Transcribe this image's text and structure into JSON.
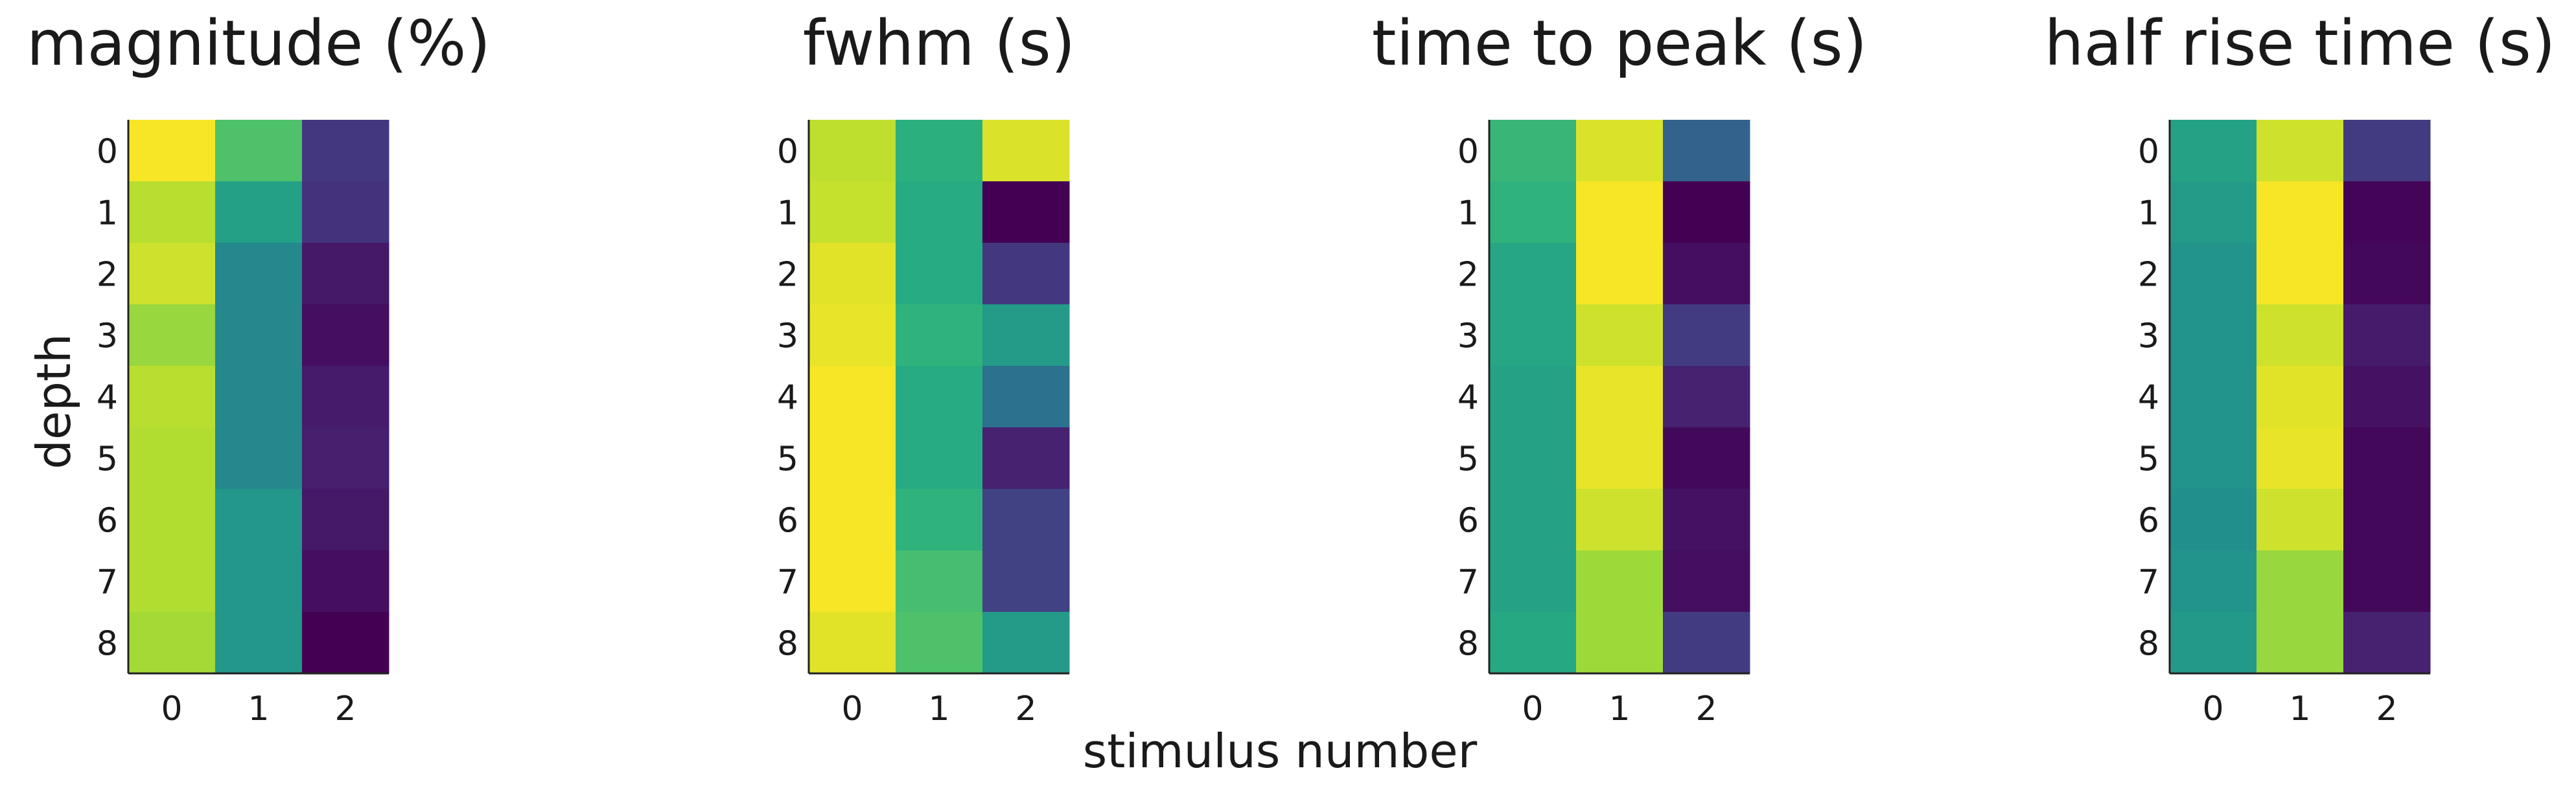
{
  "figure": {
    "xlabel": "stimulus number",
    "ylabel": "depth",
    "colormap": "viridis"
  },
  "chart_data": [
    {
      "type": "heatmap",
      "title": "magnitude (%)",
      "x_ticks": [
        "0",
        "1",
        "2"
      ],
      "y_ticks": [
        "0",
        "1",
        "2",
        "3",
        "4",
        "5",
        "6",
        "7",
        "8"
      ],
      "values": [
        [
          0.99,
          0.72,
          0.17
        ],
        [
          0.9,
          0.57,
          0.15
        ],
        [
          0.93,
          0.47,
          0.07
        ],
        [
          0.85,
          0.47,
          0.04
        ],
        [
          0.9,
          0.47,
          0.08
        ],
        [
          0.89,
          0.47,
          0.09
        ],
        [
          0.89,
          0.53,
          0.07
        ],
        [
          0.89,
          0.53,
          0.04
        ],
        [
          0.87,
          0.53,
          0.0
        ]
      ]
    },
    {
      "type": "heatmap",
      "title": "fwhm (s)",
      "x_ticks": [
        "0",
        "1",
        "2"
      ],
      "y_ticks": [
        "0",
        "1",
        "2",
        "3",
        "4",
        "5",
        "6",
        "7",
        "8"
      ],
      "values": [
        [
          0.91,
          0.64,
          0.95
        ],
        [
          0.92,
          0.62,
          0.0
        ],
        [
          0.96,
          0.62,
          0.17
        ],
        [
          0.97,
          0.65,
          0.55
        ],
        [
          0.99,
          0.62,
          0.38
        ],
        [
          0.99,
          0.62,
          0.1
        ],
        [
          0.99,
          0.65,
          0.2
        ],
        [
          0.99,
          0.7,
          0.2
        ],
        [
          0.96,
          0.72,
          0.55
        ]
      ]
    },
    {
      "type": "heatmap",
      "title": "time to peak (s)",
      "x_ticks": [
        "0",
        "1",
        "2"
      ],
      "y_ticks": [
        "0",
        "1",
        "2",
        "3",
        "4",
        "5",
        "6",
        "7",
        "8"
      ],
      "values": [
        [
          0.67,
          0.95,
          0.32
        ],
        [
          0.65,
          0.99,
          0.0
        ],
        [
          0.6,
          0.99,
          0.04
        ],
        [
          0.6,
          0.93,
          0.18
        ],
        [
          0.58,
          0.97,
          0.1
        ],
        [
          0.58,
          0.97,
          0.02
        ],
        [
          0.58,
          0.93,
          0.05
        ],
        [
          0.58,
          0.86,
          0.04
        ],
        [
          0.61,
          0.86,
          0.18
        ]
      ]
    },
    {
      "type": "heatmap",
      "title": "half rise time (s)",
      "x_ticks": [
        "0",
        "1",
        "2"
      ],
      "y_ticks": [
        "0",
        "1",
        "2",
        "3",
        "4",
        "5",
        "6",
        "7",
        "8"
      ],
      "values": [
        [
          0.58,
          0.93,
          0.18
        ],
        [
          0.55,
          0.99,
          0.01
        ],
        [
          0.52,
          0.99,
          0.02
        ],
        [
          0.52,
          0.93,
          0.08
        ],
        [
          0.52,
          0.96,
          0.05
        ],
        [
          0.52,
          0.97,
          0.02
        ],
        [
          0.5,
          0.93,
          0.02
        ],
        [
          0.52,
          0.85,
          0.02
        ],
        [
          0.54,
          0.85,
          0.1
        ]
      ]
    }
  ]
}
